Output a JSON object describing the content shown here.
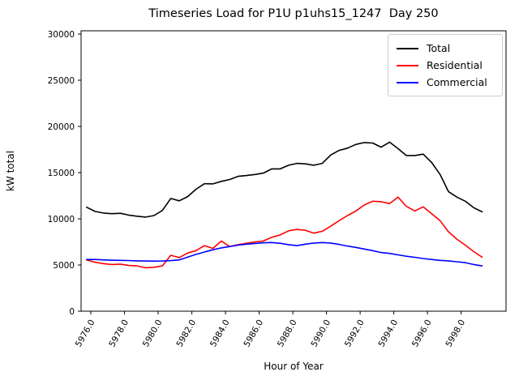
{
  "chart_data": {
    "type": "line",
    "title": "Timeseries Load for P1U p1uhs15_1247  Day 250",
    "xlabel": "Hour of Year",
    "ylabel": "kW total",
    "grid": false,
    "legend_position": "upper right",
    "xlim": [
      5975.42,
      6000.67
    ],
    "ylim": [
      0,
      30350
    ],
    "xticks": {
      "values": [
        5976,
        5978,
        5980,
        5982,
        5984,
        5986,
        5988,
        5990,
        5992,
        5994,
        5996,
        5998
      ],
      "labels": [
        "5976.0",
        "5978.0",
        "5980.0",
        "5982.0",
        "5984.0",
        "5986.0",
        "5988.0",
        "5990.0",
        "5992.0",
        "5994.0",
        "5996.0",
        "5998.0"
      ],
      "rotation_deg": 60
    },
    "yticks": {
      "values": [
        0,
        5000,
        10000,
        15000,
        20000,
        25000,
        30000
      ],
      "labels": [
        "0",
        "5000",
        "10000",
        "15000",
        "20000",
        "25000",
        "30000"
      ]
    },
    "x": [
      5975.75,
      5976.25,
      5976.75,
      5977.25,
      5977.75,
      5978.25,
      5978.75,
      5979.25,
      5979.75,
      5980.25,
      5980.75,
      5981.25,
      5981.75,
      5982.25,
      5982.75,
      5983.25,
      5983.75,
      5984.25,
      5984.75,
      5985.25,
      5985.75,
      5986.25,
      5986.75,
      5987.25,
      5987.75,
      5988.25,
      5988.75,
      5989.25,
      5989.75,
      5990.25,
      5990.75,
      5991.25,
      5991.75,
      5992.25,
      5992.75,
      5993.25,
      5993.75,
      5994.25,
      5994.75,
      5995.25,
      5995.75,
      5996.25,
      5996.75,
      5997.25,
      5997.75,
      5998.25,
      5998.75,
      5999.25
    ],
    "series": [
      {
        "name": "Total",
        "color": "#000000",
        "values": [
          11250,
          10800,
          10620,
          10550,
          10600,
          10400,
          10280,
          10180,
          10350,
          10900,
          12200,
          11950,
          12400,
          13200,
          13800,
          13780,
          14050,
          14250,
          14600,
          14680,
          14800,
          14950,
          15400,
          15400,
          15800,
          16000,
          15950,
          15800,
          16000,
          16900,
          17400,
          17650,
          18050,
          18250,
          18200,
          17750,
          18300,
          17600,
          16850,
          16850,
          17000,
          16100,
          14800,
          12950,
          12350,
          11900,
          11200,
          10750
        ]
      },
      {
        "name": "Residential",
        "color": "#ff0000",
        "values": [
          5550,
          5300,
          5150,
          5050,
          5100,
          4950,
          4900,
          4700,
          4750,
          4900,
          6050,
          5800,
          6300,
          6550,
          7100,
          6800,
          7600,
          7000,
          7200,
          7350,
          7500,
          7600,
          8000,
          8250,
          8700,
          8850,
          8750,
          8450,
          8650,
          9200,
          9800,
          10350,
          10850,
          11500,
          11900,
          11850,
          11650,
          12350,
          11350,
          10850,
          11300,
          10550,
          9800,
          8600,
          7800,
          7150,
          6450,
          5850
        ]
      },
      {
        "name": "Commercial",
        "color": "#0000ff",
        "values": [
          5600,
          5600,
          5550,
          5520,
          5500,
          5480,
          5450,
          5430,
          5420,
          5430,
          5470,
          5550,
          5850,
          6150,
          6400,
          6650,
          6850,
          7000,
          7150,
          7250,
          7330,
          7400,
          7430,
          7350,
          7200,
          7100,
          7250,
          7380,
          7430,
          7380,
          7230,
          7050,
          6900,
          6730,
          6550,
          6350,
          6250,
          6100,
          5950,
          5830,
          5700,
          5600,
          5500,
          5450,
          5350,
          5250,
          5050,
          4900
        ]
      }
    ]
  }
}
